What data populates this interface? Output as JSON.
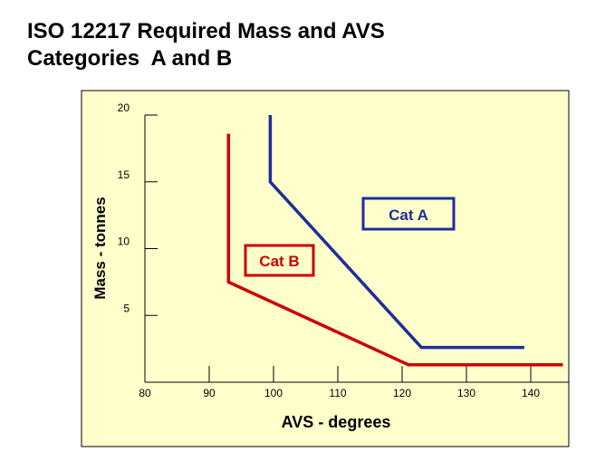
{
  "page": {
    "title_line1": "ISO 12217 Required Mass and AVS",
    "title_line2": "Categories  A and B"
  },
  "colors": {
    "panel": "#ffffcc",
    "axis": "#000000",
    "cat_a": "#1f2d9a",
    "cat_b": "#cc0000"
  },
  "chart_data": {
    "type": "line",
    "title": "ISO 12217 Required Mass and AVS Categories  A and B",
    "xlabel": "AVS - degrees",
    "ylabel": "Mass - tonnes",
    "xlim": [
      80,
      145
    ],
    "ylim": [
      0,
      20
    ],
    "x_ticks": [
      80,
      90,
      100,
      110,
      120,
      130,
      140
    ],
    "y_ticks": [
      5,
      10,
      15,
      20
    ],
    "grid": false,
    "series": [
      {
        "name": "Cat A",
        "color": "#1f2d9a",
        "points": [
          [
            99.5,
            20
          ],
          [
            99.5,
            15
          ],
          [
            123,
            2.6
          ],
          [
            139,
            2.6
          ]
        ]
      },
      {
        "name": "Cat B",
        "color": "#cc0000",
        "points": [
          [
            93,
            18.6
          ],
          [
            93,
            7.5
          ],
          [
            121,
            1.3
          ],
          [
            145,
            1.3
          ]
        ]
      }
    ],
    "annotations": [
      {
        "text": "Cat A",
        "series": "Cat A"
      },
      {
        "text": "Cat B",
        "series": "Cat B"
      }
    ]
  }
}
